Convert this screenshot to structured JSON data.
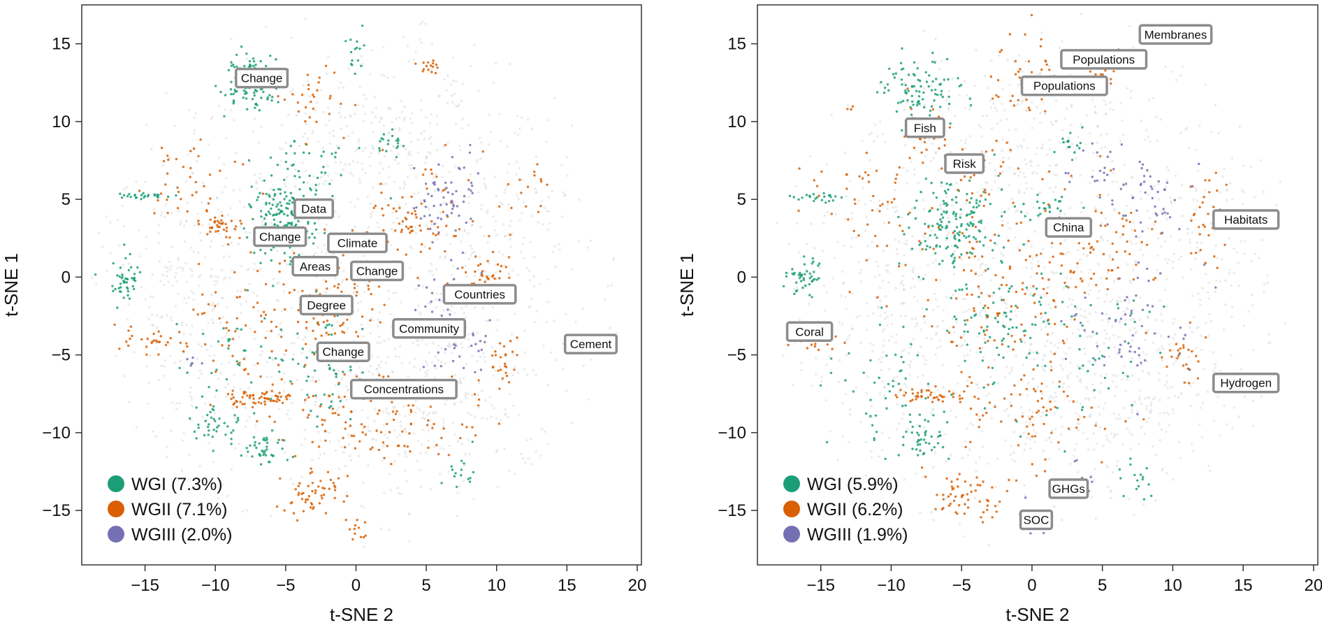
{
  "chart_data": [
    {
      "type": "scatter",
      "title": "",
      "xlabel": "t-SNE 2",
      "ylabel": "t-SNE 1",
      "xlim": [
        -19.5,
        20.3
      ],
      "ylim": [
        -18.5,
        17.5
      ],
      "xticks": [
        -15,
        -10,
        -5,
        0,
        5,
        10,
        15,
        20
      ],
      "yticks": [
        15,
        10,
        5,
        0,
        -5,
        -10,
        -15
      ],
      "xtick_labels": [
        "−15",
        "−10",
        "−5",
        "0",
        "5",
        "10",
        "15",
        "20"
      ],
      "ytick_labels": [
        "15",
        "10",
        "5",
        "0",
        "−5",
        "−10",
        "−15"
      ],
      "grid": false,
      "legend": {
        "position": "bottom-left",
        "entries": [
          {
            "label": "WGI (7.3%)",
            "color": "#1b9e77"
          },
          {
            "label": "WGII (7.1%)",
            "color": "#d95f02"
          },
          {
            "label": "WGIII (2.0%)",
            "color": "#7570b3"
          }
        ]
      },
      "annotations": [
        {
          "text": "Change",
          "x": -6.7,
          "y": 12.8
        },
        {
          "text": "Data",
          "x": -3.0,
          "y": 4.4
        },
        {
          "text": "Change",
          "x": -5.4,
          "y": 2.6
        },
        {
          "text": "Climate",
          "x": 0.1,
          "y": 2.2
        },
        {
          "text": "Areas",
          "x": -2.9,
          "y": 0.7
        },
        {
          "text": "Change",
          "x": 1.5,
          "y": 0.4
        },
        {
          "text": "Countries",
          "x": 8.8,
          "y": -1.1
        },
        {
          "text": "Degree",
          "x": -2.1,
          "y": -1.8
        },
        {
          "text": "Community",
          "x": 5.2,
          "y": -3.3
        },
        {
          "text": "Cement",
          "x": 16.7,
          "y": -4.3
        },
        {
          "text": "Change",
          "x": -0.9,
          "y": -4.8
        },
        {
          "text": "Concentrations",
          "x": 3.4,
          "y": -7.2
        }
      ],
      "series": [
        {
          "name": "WGI",
          "color": "#1b9e77",
          "clusters": [
            {
              "x": -7.5,
              "y": 12.5,
              "sx": 1.0,
              "sy": 0.8,
              "n": 110
            },
            {
              "x": -5.2,
              "y": 3.6,
              "sx": 1.2,
              "sy": 1.3,
              "n": 200
            },
            {
              "x": -16.3,
              "y": -0.2,
              "sx": 0.6,
              "sy": 0.7,
              "n": 45
            },
            {
              "x": -15.3,
              "y": 5.2,
              "sx": 0.9,
              "sy": 0.12,
              "n": 25
            },
            {
              "x": -6.5,
              "y": -11.0,
              "sx": 0.7,
              "sy": 0.5,
              "n": 40
            },
            {
              "x": -10.0,
              "y": -9.6,
              "sx": 0.9,
              "sy": 0.6,
              "n": 35
            },
            {
              "x": -2.0,
              "y": -5.2,
              "sx": 1.6,
              "sy": 1.8,
              "n": 60
            },
            {
              "x": -3.5,
              "y": 7.0,
              "sx": 2.0,
              "sy": 1.0,
              "n": 40
            },
            {
              "x": 2.5,
              "y": 8.5,
              "sx": 0.4,
              "sy": 0.6,
              "n": 18
            },
            {
              "x": -8.0,
              "y": -5.5,
              "sx": 2.0,
              "sy": 2.0,
              "n": 40
            },
            {
              "x": 0.0,
              "y": 14.5,
              "sx": 0.4,
              "sy": 1.0,
              "n": 15
            },
            {
              "x": 7.5,
              "y": -12.5,
              "sx": 0.6,
              "sy": 0.8,
              "n": 15
            }
          ]
        },
        {
          "name": "WGII",
          "color": "#d95f02",
          "clusters": [
            {
              "x": -7.0,
              "y": -7.8,
              "sx": 1.2,
              "sy": 0.3,
              "n": 60
            },
            {
              "x": -9.5,
              "y": 3.3,
              "sx": 0.8,
              "sy": 0.3,
              "n": 35
            },
            {
              "x": -3.5,
              "y": -14.0,
              "sx": 1.2,
              "sy": 0.8,
              "n": 55
            },
            {
              "x": 5.3,
              "y": 13.5,
              "sx": 0.4,
              "sy": 0.4,
              "n": 15
            },
            {
              "x": -2.0,
              "y": -1.5,
              "sx": 2.0,
              "sy": 2.0,
              "n": 110
            },
            {
              "x": 4.5,
              "y": 3.5,
              "sx": 2.2,
              "sy": 2.0,
              "n": 80
            },
            {
              "x": 9.5,
              "y": 0.5,
              "sx": 1.0,
              "sy": 1.0,
              "n": 35
            },
            {
              "x": -1.0,
              "y": -9.0,
              "sx": 2.5,
              "sy": 1.5,
              "n": 60
            },
            {
              "x": 5.0,
              "y": -10.0,
              "sx": 2.0,
              "sy": 1.5,
              "n": 50
            },
            {
              "x": -3.0,
              "y": 11.5,
              "sx": 1.5,
              "sy": 1.0,
              "n": 30
            },
            {
              "x": -14.0,
              "y": -4.0,
              "sx": 1.5,
              "sy": 0.5,
              "n": 30
            },
            {
              "x": -12.0,
              "y": 6.0,
              "sx": 2.0,
              "sy": 1.5,
              "n": 40
            },
            {
              "x": 10.5,
              "y": -5.5,
              "sx": 0.6,
              "sy": 0.8,
              "n": 25
            },
            {
              "x": 0.0,
              "y": -16.0,
              "sx": 0.4,
              "sy": 0.5,
              "n": 12
            },
            {
              "x": -8.5,
              "y": -2.5,
              "sx": 1.5,
              "sy": 2.0,
              "n": 50
            },
            {
              "x": 12.0,
              "y": 5.5,
              "sx": 0.8,
              "sy": 1.0,
              "n": 15
            }
          ]
        },
        {
          "name": "WGIII",
          "color": "#7570b3",
          "clusters": [
            {
              "x": 6.5,
              "y": 5.0,
              "sx": 1.5,
              "sy": 1.3,
              "n": 60
            },
            {
              "x": 6.0,
              "y": -1.5,
              "sx": 1.5,
              "sy": 1.5,
              "n": 30
            },
            {
              "x": 8.0,
              "y": -4.5,
              "sx": 1.5,
              "sy": 1.0,
              "n": 20
            },
            {
              "x": -11.5,
              "y": -5.5,
              "sx": 0.3,
              "sy": 0.3,
              "n": 6
            }
          ]
        }
      ],
      "background_clusters": [
        {
          "x": 0.0,
          "y": 0.0,
          "sx": 8.5,
          "sy": 8.0,
          "n": 850
        },
        {
          "x": 5.0,
          "y": -8.0,
          "sx": 4.0,
          "sy": 3.0,
          "n": 250
        },
        {
          "x": -12.0,
          "y": 0.0,
          "sx": 3.0,
          "sy": 6.0,
          "n": 200
        },
        {
          "x": 3.0,
          "y": 9.0,
          "sx": 4.0,
          "sy": 3.0,
          "n": 150
        },
        {
          "x": 11.0,
          "y": 2.0,
          "sx": 3.0,
          "sy": 4.0,
          "n": 120
        }
      ]
    },
    {
      "type": "scatter",
      "title": "",
      "xlabel": "t-SNE 2",
      "ylabel": "t-SNE 1",
      "xlim": [
        -19.5,
        20.3
      ],
      "ylim": [
        -18.5,
        17.5
      ],
      "xticks": [
        -15,
        -10,
        -5,
        0,
        5,
        10,
        15,
        20
      ],
      "yticks": [
        15,
        10,
        5,
        0,
        -5,
        -10,
        -15
      ],
      "xtick_labels": [
        "−15",
        "−10",
        "−5",
        "0",
        "5",
        "10",
        "15",
        "20"
      ],
      "ytick_labels": [
        "15",
        "10",
        "5",
        "0",
        "−5",
        "−10",
        "−15"
      ],
      "grid": false,
      "legend": {
        "position": "bottom-left",
        "entries": [
          {
            "label": "WGI (5.9%)",
            "color": "#1b9e77"
          },
          {
            "label": "WGII (6.2%)",
            "color": "#d95f02"
          },
          {
            "label": "WGIII (1.9%)",
            "color": "#7570b3"
          }
        ]
      },
      "annotations": [
        {
          "text": "Membranes",
          "x": 10.2,
          "y": 15.6
        },
        {
          "text": "Populations",
          "x": 5.1,
          "y": 14.0
        },
        {
          "text": "Populations",
          "x": 2.3,
          "y": 12.3
        },
        {
          "text": "Fish",
          "x": -7.6,
          "y": 9.6
        },
        {
          "text": "Risk",
          "x": -4.8,
          "y": 7.3
        },
        {
          "text": "China",
          "x": 2.6,
          "y": 3.2
        },
        {
          "text": "Habitats",
          "x": 15.2,
          "y": 3.7
        },
        {
          "text": "Coral",
          "x": -15.8,
          "y": -3.5
        },
        {
          "text": "Hydrogen",
          "x": 15.2,
          "y": -6.8
        },
        {
          "text": "GHGs",
          "x": 2.6,
          "y": -13.6
        },
        {
          "text": "SOC",
          "x": 0.3,
          "y": -15.6
        }
      ],
      "series": [
        {
          "name": "WGI",
          "color": "#1b9e77",
          "clusters": [
            {
              "x": -8.0,
              "y": 12.0,
              "sx": 1.2,
              "sy": 1.0,
              "n": 90
            },
            {
              "x": -5.5,
              "y": 3.5,
              "sx": 1.5,
              "sy": 1.5,
              "n": 160
            },
            {
              "x": -16.3,
              "y": 0.0,
              "sx": 0.6,
              "sy": 0.7,
              "n": 45
            },
            {
              "x": -15.3,
              "y": 5.1,
              "sx": 0.9,
              "sy": 0.12,
              "n": 22
            },
            {
              "x": -7.5,
              "y": -10.5,
              "sx": 0.8,
              "sy": 0.6,
              "n": 40
            },
            {
              "x": -2.0,
              "y": -2.5,
              "sx": 2.0,
              "sy": 2.0,
              "n": 90
            },
            {
              "x": 2.5,
              "y": 8.5,
              "sx": 0.5,
              "sy": 0.6,
              "n": 15
            },
            {
              "x": -10.0,
              "y": -7.0,
              "sx": 2.0,
              "sy": 2.0,
              "n": 50
            },
            {
              "x": 1.0,
              "y": 4.5,
              "sx": 1.0,
              "sy": 0.5,
              "n": 25
            },
            {
              "x": 5.0,
              "y": -5.0,
              "sx": 2.5,
              "sy": 2.5,
              "n": 45
            },
            {
              "x": 7.5,
              "y": -13.0,
              "sx": 0.6,
              "sy": 0.8,
              "n": 15
            }
          ]
        },
        {
          "name": "WGII",
          "color": "#d95f02",
          "clusters": [
            {
              "x": -4.5,
              "y": -14.0,
              "sx": 1.2,
              "sy": 0.8,
              "n": 55
            },
            {
              "x": -7.0,
              "y": -7.6,
              "sx": 1.2,
              "sy": 0.3,
              "n": 45
            },
            {
              "x": 5.2,
              "y": 13.5,
              "sx": 0.5,
              "sy": 0.5,
              "n": 25
            },
            {
              "x": -0.5,
              "y": 12.8,
              "sx": 1.2,
              "sy": 1.5,
              "n": 40
            },
            {
              "x": -7.5,
              "y": 9.0,
              "sx": 0.7,
              "sy": 1.0,
              "n": 30
            },
            {
              "x": -15.5,
              "y": -4.0,
              "sx": 0.9,
              "sy": 0.4,
              "n": 25
            },
            {
              "x": -2.0,
              "y": -1.0,
              "sx": 3.0,
              "sy": 3.0,
              "n": 140
            },
            {
              "x": 5.0,
              "y": 2.0,
              "sx": 2.5,
              "sy": 2.5,
              "n": 70
            },
            {
              "x": 12.5,
              "y": 4.0,
              "sx": 0.8,
              "sy": 1.5,
              "n": 30
            },
            {
              "x": 11.0,
              "y": -5.0,
              "sx": 0.7,
              "sy": 1.0,
              "n": 25
            },
            {
              "x": -12.0,
              "y": 5.0,
              "sx": 2.0,
              "sy": 2.5,
              "n": 50
            },
            {
              "x": 0.0,
              "y": -9.0,
              "sx": 3.0,
              "sy": 1.5,
              "n": 60
            },
            {
              "x": -3.5,
              "y": 7.0,
              "sx": 1.5,
              "sy": 1.0,
              "n": 25
            }
          ]
        },
        {
          "name": "WGIII",
          "color": "#7570b3",
          "clusters": [
            {
              "x": 8.0,
              "y": 4.5,
              "sx": 1.5,
              "sy": 1.5,
              "n": 45
            },
            {
              "x": 7.0,
              "y": -3.5,
              "sx": 2.5,
              "sy": 2.0,
              "n": 55
            },
            {
              "x": 0.0,
              "y": -15.5,
              "sx": 0.5,
              "sy": 0.6,
              "n": 12
            },
            {
              "x": 3.5,
              "y": -13.0,
              "sx": 0.7,
              "sy": 0.5,
              "n": 10
            },
            {
              "x": 5.0,
              "y": 7.0,
              "sx": 1.5,
              "sy": 1.0,
              "n": 20
            }
          ]
        }
      ],
      "background_clusters": [
        {
          "x": 0.0,
          "y": 0.0,
          "sx": 8.5,
          "sy": 8.0,
          "n": 850
        },
        {
          "x": 6.0,
          "y": -8.0,
          "sx": 4.0,
          "sy": 3.0,
          "n": 250
        },
        {
          "x": -11.0,
          "y": -2.0,
          "sx": 3.0,
          "sy": 6.0,
          "n": 200
        },
        {
          "x": 0.0,
          "y": 10.0,
          "sx": 4.0,
          "sy": 3.0,
          "n": 150
        },
        {
          "x": 11.0,
          "y": 2.0,
          "sx": 3.0,
          "sy": 4.0,
          "n": 120
        }
      ]
    }
  ]
}
